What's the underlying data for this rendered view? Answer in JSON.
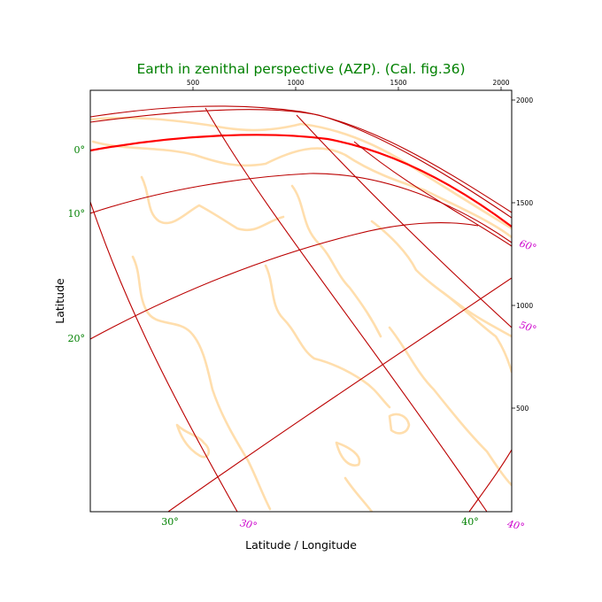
{
  "title": "Earth in zenithal perspective (AZP). (Cal. fig.36)",
  "colors": {
    "title": "#008000",
    "coast": "#ffdead",
    "grid": "#bb0000",
    "grid_highlight": "#ff0000",
    "wcs_label_green": "#008000",
    "wcs_label_magenta": "#cc00cc",
    "frame": "#000000"
  },
  "xlabel": "Latitude / Longitude",
  "ylabel": "Latitude",
  "pixel_ticks_top": [
    "500",
    "1000",
    "1500",
    "2000"
  ],
  "pixel_ticks_right": [
    "2000",
    "1500",
    "1000",
    "500"
  ],
  "wcs_labels_left": [
    "0°",
    "10°",
    "20°"
  ],
  "wcs_labels_bottom_green": [
    "30°",
    "40°"
  ],
  "wcs_labels_bottom_magenta": [
    "30°",
    "40°"
  ],
  "wcs_labels_right_magenta": [
    "60°",
    "50°"
  ]
}
